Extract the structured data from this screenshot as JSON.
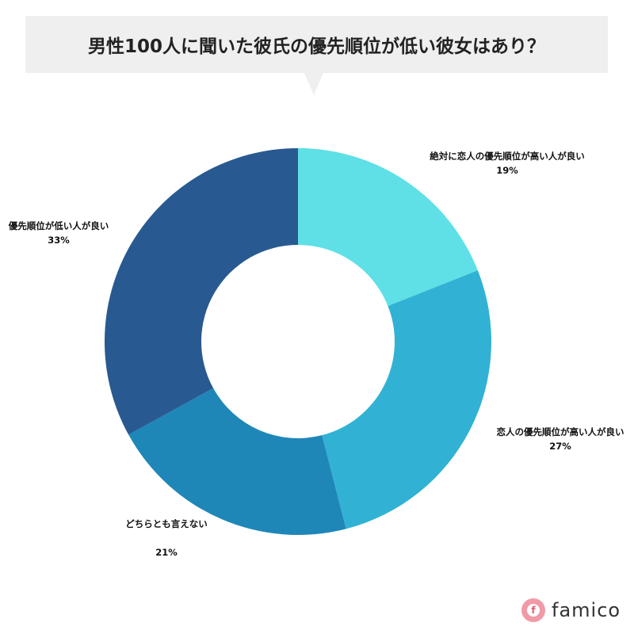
{
  "title": "男性100人に聞いた彼氏の優先順位が低い彼女はあり？",
  "chart_data": {
    "type": "pie",
    "categories": [
      "絶対に恋人の優先順位が高い人が良い",
      "恋人の優先順位が高い人が良い",
      "どちらとも言えない",
      "優先順位が低い人が良い"
    ],
    "values": [
      19,
      27,
      21,
      33
    ],
    "value_labels": [
      "19%",
      "27%",
      "21%",
      "33%"
    ],
    "colors": [
      "#5ee0e6",
      "#31b2d4",
      "#1e87b8",
      "#285a91"
    ],
    "donut": true
  },
  "logo": {
    "mark": "f",
    "text": "famico"
  }
}
